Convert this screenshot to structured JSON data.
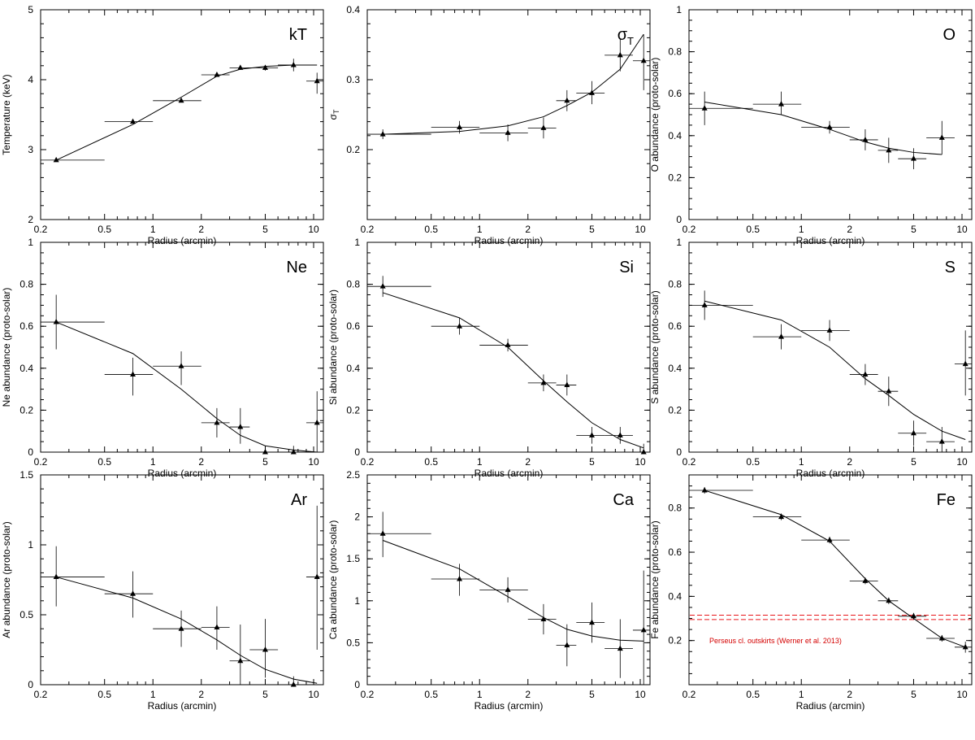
{
  "figure": {
    "xlabel": "Radius (arcmin)",
    "x_ticks": [
      0.2,
      0.5,
      1,
      2,
      5,
      10
    ],
    "x_tick_labels": [
      "0.2",
      "0.5",
      "1",
      "2",
      "5",
      "10"
    ],
    "xlim": [
      0.2,
      11.5
    ]
  },
  "chart_data": [
    {
      "type": "scatter",
      "id": "kT",
      "title": "kT",
      "ylabel": "Temperature (keV)",
      "ylim": [
        2,
        5
      ],
      "y_ticks": [
        2,
        3,
        4,
        5
      ],
      "y_tick_labels": [
        "2",
        "3",
        "4",
        "5"
      ],
      "points": [
        {
          "x": 0.25,
          "xlo": 0.2,
          "xhi": 0.5,
          "y": 2.85,
          "ylo": 2.83,
          "yhi": 2.87
        },
        {
          "x": 0.75,
          "xlo": 0.5,
          "xhi": 1.0,
          "y": 3.4,
          "ylo": 3.38,
          "yhi": 3.42
        },
        {
          "x": 1.5,
          "xlo": 1.0,
          "xhi": 2.0,
          "y": 3.7,
          "ylo": 3.68,
          "yhi": 3.72
        },
        {
          "x": 2.5,
          "xlo": 2.0,
          "xhi": 3.0,
          "y": 4.07,
          "ylo": 4.05,
          "yhi": 4.09
        },
        {
          "x": 3.5,
          "xlo": 3.0,
          "xhi": 4.0,
          "y": 4.17,
          "ylo": 4.14,
          "yhi": 4.2
        },
        {
          "x": 5.0,
          "xlo": 4.0,
          "xhi": 6.0,
          "y": 4.17,
          "ylo": 4.13,
          "yhi": 4.21
        },
        {
          "x": 7.5,
          "xlo": 6.0,
          "xhi": 9.0,
          "y": 4.21,
          "ylo": 4.12,
          "yhi": 4.3
        },
        {
          "x": 10.5,
          "xlo": 9.0,
          "xhi": 11.5,
          "y": 3.98,
          "ylo": 3.8,
          "yhi": 4.1
        }
      ],
      "model": {
        "x": [
          0.25,
          0.75,
          1.5,
          2.5,
          3.5,
          5.0,
          7.5,
          10.5
        ],
        "y": [
          2.85,
          3.36,
          3.75,
          4.05,
          4.15,
          4.19,
          4.21,
          4.21
        ]
      }
    },
    {
      "type": "scatter",
      "id": "sigma",
      "title": "σ",
      "title_sub": "T",
      "ylabel": "σ",
      "ylabel_sub": "T",
      "ylim": [
        0.1,
        0.4
      ],
      "y_ticks": [
        0.2,
        0.3,
        0.4
      ],
      "y_tick_labels": [
        "0.2",
        "0.3",
        "0.4"
      ],
      "points": [
        {
          "x": 0.25,
          "xlo": 0.2,
          "xhi": 0.5,
          "y": 0.222,
          "ylo": 0.215,
          "yhi": 0.229
        },
        {
          "x": 0.75,
          "xlo": 0.5,
          "xhi": 1.0,
          "y": 0.232,
          "ylo": 0.223,
          "yhi": 0.241
        },
        {
          "x": 1.5,
          "xlo": 1.0,
          "xhi": 2.0,
          "y": 0.224,
          "ylo": 0.212,
          "yhi": 0.236
        },
        {
          "x": 2.5,
          "xlo": 2.0,
          "xhi": 3.0,
          "y": 0.231,
          "ylo": 0.216,
          "yhi": 0.246
        },
        {
          "x": 3.5,
          "xlo": 3.0,
          "xhi": 4.0,
          "y": 0.27,
          "ylo": 0.255,
          "yhi": 0.285
        },
        {
          "x": 5.0,
          "xlo": 4.0,
          "xhi": 6.0,
          "y": 0.281,
          "ylo": 0.265,
          "yhi": 0.298
        },
        {
          "x": 7.5,
          "xlo": 6.0,
          "xhi": 9.0,
          "y": 0.335,
          "ylo": 0.312,
          "yhi": 0.358
        },
        {
          "x": 10.5,
          "xlo": 9.0,
          "xhi": 11.5,
          "y": 0.327,
          "ylo": 0.285,
          "yhi": 0.365
        }
      ],
      "model": {
        "x": [
          0.25,
          0.75,
          1.5,
          2.5,
          3.5,
          5.0,
          7.5,
          10.5
        ],
        "y": [
          0.222,
          0.226,
          0.234,
          0.247,
          0.263,
          0.282,
          0.315,
          0.365
        ]
      }
    },
    {
      "type": "scatter",
      "id": "O",
      "title": "O",
      "ylabel": "O abundance (proto-solar)",
      "ylim": [
        0,
        1
      ],
      "y_ticks": [
        0,
        0.2,
        0.4,
        0.6,
        0.8,
        1
      ],
      "y_tick_labels": [
        "0",
        "0.2",
        "0.4",
        "0.6",
        "0.8",
        "1"
      ],
      "points": [
        {
          "x": 0.25,
          "xlo": 0.2,
          "xhi": 0.5,
          "y": 0.53,
          "ylo": 0.45,
          "yhi": 0.61
        },
        {
          "x": 0.75,
          "xlo": 0.5,
          "xhi": 1.0,
          "y": 0.55,
          "ylo": 0.5,
          "yhi": 0.61
        },
        {
          "x": 1.5,
          "xlo": 1.0,
          "xhi": 2.0,
          "y": 0.44,
          "ylo": 0.41,
          "yhi": 0.47
        },
        {
          "x": 2.5,
          "xlo": 2.0,
          "xhi": 3.0,
          "y": 0.38,
          "ylo": 0.33,
          "yhi": 0.43
        },
        {
          "x": 3.5,
          "xlo": 3.0,
          "xhi": 4.0,
          "y": 0.33,
          "ylo": 0.27,
          "yhi": 0.39
        },
        {
          "x": 5.0,
          "xlo": 4.0,
          "xhi": 6.0,
          "y": 0.29,
          "ylo": 0.24,
          "yhi": 0.34
        },
        {
          "x": 7.5,
          "xlo": 6.0,
          "xhi": 9.0,
          "y": 0.39,
          "ylo": 0.31,
          "yhi": 0.47
        }
      ],
      "model": {
        "x": [
          0.25,
          0.75,
          1.5,
          2.5,
          3.5,
          5.0,
          7.5
        ],
        "y": [
          0.56,
          0.5,
          0.43,
          0.37,
          0.34,
          0.32,
          0.31
        ]
      }
    },
    {
      "type": "scatter",
      "id": "Ne",
      "title": "Ne",
      "ylabel": "Ne abundance (proto-solar)",
      "ylim": [
        0,
        1
      ],
      "y_ticks": [
        0,
        0.2,
        0.4,
        0.6,
        0.8,
        1
      ],
      "y_tick_labels": [
        "0",
        "0.2",
        "0.4",
        "0.6",
        "0.8",
        "1"
      ],
      "points": [
        {
          "x": 0.25,
          "xlo": 0.2,
          "xhi": 0.5,
          "y": 0.62,
          "ylo": 0.49,
          "yhi": 0.75
        },
        {
          "x": 0.75,
          "xlo": 0.5,
          "xhi": 1.0,
          "y": 0.37,
          "ylo": 0.27,
          "yhi": 0.45
        },
        {
          "x": 1.5,
          "xlo": 1.0,
          "xhi": 2.0,
          "y": 0.41,
          "ylo": 0.32,
          "yhi": 0.48
        },
        {
          "x": 2.5,
          "xlo": 2.0,
          "xhi": 3.0,
          "y": 0.14,
          "ylo": 0.07,
          "yhi": 0.21
        },
        {
          "x": 3.5,
          "xlo": 3.0,
          "xhi": 4.0,
          "y": 0.12,
          "ylo": 0.04,
          "yhi": 0.21
        },
        {
          "x": 5.0,
          "xlo": 4.0,
          "xhi": 6.0,
          "y": 0.0,
          "ylo": 0.0,
          "yhi": 0.03
        },
        {
          "x": 7.5,
          "xlo": 6.0,
          "xhi": 9.0,
          "y": 0.0,
          "ylo": 0.0,
          "yhi": 0.03
        },
        {
          "x": 10.5,
          "xlo": 9.0,
          "xhi": 11.5,
          "y": 0.14,
          "ylo": 0.0,
          "yhi": 0.29
        }
      ],
      "model": {
        "x": [
          0.25,
          0.75,
          1.5,
          2.5,
          3.5,
          5.0,
          7.5,
          10.5
        ],
        "y": [
          0.62,
          0.47,
          0.3,
          0.16,
          0.08,
          0.03,
          0.01,
          0.0
        ]
      }
    },
    {
      "type": "scatter",
      "id": "Si",
      "title": "Si",
      "ylabel": "Si abundance (proto-solar)",
      "ylim": [
        0,
        1
      ],
      "y_ticks": [
        0,
        0.2,
        0.4,
        0.6,
        0.8,
        1
      ],
      "y_tick_labels": [
        "0",
        "0.2",
        "0.4",
        "0.6",
        "0.8",
        "1"
      ],
      "points": [
        {
          "x": 0.25,
          "xlo": 0.2,
          "xhi": 0.5,
          "y": 0.79,
          "ylo": 0.74,
          "yhi": 0.84
        },
        {
          "x": 0.75,
          "xlo": 0.5,
          "xhi": 1.0,
          "y": 0.6,
          "ylo": 0.56,
          "yhi": 0.64
        },
        {
          "x": 1.5,
          "xlo": 1.0,
          "xhi": 2.0,
          "y": 0.51,
          "ylo": 0.48,
          "yhi": 0.54
        },
        {
          "x": 2.5,
          "xlo": 2.0,
          "xhi": 3.0,
          "y": 0.33,
          "ylo": 0.29,
          "yhi": 0.37
        },
        {
          "x": 3.5,
          "xlo": 3.0,
          "xhi": 4.0,
          "y": 0.32,
          "ylo": 0.27,
          "yhi": 0.37
        },
        {
          "x": 5.0,
          "xlo": 4.0,
          "xhi": 6.0,
          "y": 0.08,
          "ylo": 0.04,
          "yhi": 0.12
        },
        {
          "x": 7.5,
          "xlo": 6.0,
          "xhi": 9.0,
          "y": 0.08,
          "ylo": 0.04,
          "yhi": 0.12
        },
        {
          "x": 10.5,
          "xlo": 9.0,
          "xhi": 11.5,
          "y": 0.0,
          "ylo": 0.0,
          "yhi": 0.04
        }
      ],
      "model": {
        "x": [
          0.25,
          0.75,
          1.5,
          2.5,
          3.5,
          5.0,
          7.5,
          10.5
        ],
        "y": [
          0.76,
          0.64,
          0.5,
          0.34,
          0.24,
          0.14,
          0.06,
          0.02
        ]
      }
    },
    {
      "type": "scatter",
      "id": "S",
      "title": "S",
      "ylabel": "S abundance (proto-solar)",
      "ylim": [
        0,
        1
      ],
      "y_ticks": [
        0,
        0.2,
        0.4,
        0.6,
        0.8,
        1
      ],
      "y_tick_labels": [
        "0",
        "0.2",
        "0.4",
        "0.6",
        "0.8",
        "1"
      ],
      "points": [
        {
          "x": 0.25,
          "xlo": 0.2,
          "xhi": 0.5,
          "y": 0.7,
          "ylo": 0.63,
          "yhi": 0.77
        },
        {
          "x": 0.75,
          "xlo": 0.5,
          "xhi": 1.0,
          "y": 0.55,
          "ylo": 0.49,
          "yhi": 0.61
        },
        {
          "x": 1.5,
          "xlo": 1.0,
          "xhi": 2.0,
          "y": 0.58,
          "ylo": 0.53,
          "yhi": 0.63
        },
        {
          "x": 2.5,
          "xlo": 2.0,
          "xhi": 3.0,
          "y": 0.37,
          "ylo": 0.32,
          "yhi": 0.42
        },
        {
          "x": 3.5,
          "xlo": 3.0,
          "xhi": 4.0,
          "y": 0.29,
          "ylo": 0.22,
          "yhi": 0.36
        },
        {
          "x": 5.0,
          "xlo": 4.0,
          "xhi": 6.0,
          "y": 0.09,
          "ylo": 0.03,
          "yhi": 0.15
        },
        {
          "x": 7.5,
          "xlo": 6.0,
          "xhi": 9.0,
          "y": 0.05,
          "ylo": 0.0,
          "yhi": 0.12
        },
        {
          "x": 10.5,
          "xlo": 9.0,
          "xhi": 11.5,
          "y": 0.42,
          "ylo": 0.27,
          "yhi": 0.58
        }
      ],
      "model": {
        "x": [
          0.25,
          0.75,
          1.5,
          2.5,
          3.5,
          5.0,
          7.5,
          10.5
        ],
        "y": [
          0.72,
          0.63,
          0.5,
          0.35,
          0.27,
          0.18,
          0.1,
          0.06
        ]
      }
    },
    {
      "type": "scatter",
      "id": "Ar",
      "title": "Ar",
      "ylabel": "Ar abundance (proto-solar)",
      "ylim": [
        0,
        1.5
      ],
      "y_ticks": [
        0,
        0.5,
        1,
        1.5
      ],
      "y_tick_labels": [
        "0",
        "0.5",
        "1",
        "1.5"
      ],
      "points": [
        {
          "x": 0.25,
          "xlo": 0.2,
          "xhi": 0.5,
          "y": 0.77,
          "ylo": 0.56,
          "yhi": 0.99
        },
        {
          "x": 0.75,
          "xlo": 0.5,
          "xhi": 1.0,
          "y": 0.65,
          "ylo": 0.48,
          "yhi": 0.81
        },
        {
          "x": 1.5,
          "xlo": 1.0,
          "xhi": 2.0,
          "y": 0.4,
          "ylo": 0.27,
          "yhi": 0.53
        },
        {
          "x": 2.5,
          "xlo": 2.0,
          "xhi": 3.0,
          "y": 0.41,
          "ylo": 0.25,
          "yhi": 0.56
        },
        {
          "x": 3.5,
          "xlo": 3.0,
          "xhi": 4.0,
          "y": 0.17,
          "ylo": 0.0,
          "yhi": 0.43
        },
        {
          "x": 5.0,
          "xlo": 4.0,
          "xhi": 6.0,
          "y": 0.25,
          "ylo": 0.05,
          "yhi": 0.47
        },
        {
          "x": 7.5,
          "xlo": 6.0,
          "xhi": 9.0,
          "y": 0.0,
          "ylo": 0.0,
          "yhi": 0.06
        },
        {
          "x": 10.5,
          "xlo": 9.0,
          "xhi": 11.5,
          "y": 0.77,
          "ylo": 0.25,
          "yhi": 1.28
        }
      ],
      "model": {
        "x": [
          0.25,
          0.75,
          1.5,
          2.5,
          3.5,
          5.0,
          7.5,
          10.5
        ],
        "y": [
          0.77,
          0.62,
          0.47,
          0.32,
          0.21,
          0.11,
          0.04,
          0.01
        ]
      }
    },
    {
      "type": "scatter",
      "id": "Ca",
      "title": "Ca",
      "ylabel": "Ca abundance (proto-solar)",
      "ylim": [
        0,
        2.5
      ],
      "y_ticks": [
        0,
        0.5,
        1,
        1.5,
        2,
        2.5
      ],
      "y_tick_labels": [
        "0",
        "0.5",
        "1",
        "1.5",
        "2",
        "2.5"
      ],
      "points": [
        {
          "x": 0.25,
          "xlo": 0.2,
          "xhi": 0.5,
          "y": 1.8,
          "ylo": 1.52,
          "yhi": 2.06
        },
        {
          "x": 0.75,
          "xlo": 0.5,
          "xhi": 1.0,
          "y": 1.26,
          "ylo": 1.06,
          "yhi": 1.44
        },
        {
          "x": 1.5,
          "xlo": 1.0,
          "xhi": 2.0,
          "y": 1.13,
          "ylo": 0.98,
          "yhi": 1.28
        },
        {
          "x": 2.5,
          "xlo": 2.0,
          "xhi": 3.0,
          "y": 0.78,
          "ylo": 0.6,
          "yhi": 0.96
        },
        {
          "x": 3.5,
          "xlo": 3.0,
          "xhi": 4.0,
          "y": 0.47,
          "ylo": 0.22,
          "yhi": 0.72
        },
        {
          "x": 5.0,
          "xlo": 4.0,
          "xhi": 6.0,
          "y": 0.74,
          "ylo": 0.5,
          "yhi": 0.98
        },
        {
          "x": 7.5,
          "xlo": 6.0,
          "xhi": 9.0,
          "y": 0.43,
          "ylo": 0.08,
          "yhi": 0.78
        },
        {
          "x": 10.5,
          "xlo": 9.0,
          "xhi": 11.5,
          "y": 0.65,
          "ylo": 0.0,
          "yhi": 1.36
        }
      ],
      "model": {
        "x": [
          0.25,
          0.75,
          1.5,
          2.5,
          3.5,
          5.0,
          7.5,
          10.5
        ],
        "y": [
          1.72,
          1.38,
          1.05,
          0.8,
          0.66,
          0.58,
          0.53,
          0.52
        ]
      }
    },
    {
      "type": "scatter",
      "id": "Fe",
      "title": "Fe",
      "ylabel": "Fe abundance (proto-solar)",
      "ylim": [
        0,
        0.95
      ],
      "y_ticks": [
        0.2,
        0.4,
        0.6,
        0.8
      ],
      "y_tick_labels": [
        "0.2",
        "0.4",
        "0.6",
        "0.8"
      ],
      "points": [
        {
          "x": 0.25,
          "xlo": 0.2,
          "xhi": 0.5,
          "y": 0.88,
          "ylo": 0.865,
          "yhi": 0.895
        },
        {
          "x": 0.75,
          "xlo": 0.5,
          "xhi": 1.0,
          "y": 0.76,
          "ylo": 0.745,
          "yhi": 0.775
        },
        {
          "x": 1.5,
          "xlo": 1.0,
          "xhi": 2.0,
          "y": 0.655,
          "ylo": 0.64,
          "yhi": 0.67
        },
        {
          "x": 2.5,
          "xlo": 2.0,
          "xhi": 3.0,
          "y": 0.47,
          "ylo": 0.455,
          "yhi": 0.485
        },
        {
          "x": 3.5,
          "xlo": 3.0,
          "xhi": 4.0,
          "y": 0.38,
          "ylo": 0.365,
          "yhi": 0.395
        },
        {
          "x": 5.0,
          "xlo": 4.0,
          "xhi": 6.0,
          "y": 0.31,
          "ylo": 0.295,
          "yhi": 0.325
        },
        {
          "x": 7.5,
          "xlo": 6.0,
          "xhi": 9.0,
          "y": 0.21,
          "ylo": 0.195,
          "yhi": 0.225
        },
        {
          "x": 10.5,
          "xlo": 9.0,
          "xhi": 11.5,
          "y": 0.17,
          "ylo": 0.145,
          "yhi": 0.195
        }
      ],
      "model": {
        "x": [
          0.25,
          0.75,
          1.5,
          2.5,
          3.5,
          5.0,
          7.5,
          10.5
        ],
        "y": [
          0.88,
          0.77,
          0.65,
          0.48,
          0.38,
          0.3,
          0.21,
          0.17
        ]
      },
      "hlines": [
        0.295,
        0.315
      ],
      "hline_color": "#e8161b",
      "annotation": "Perseus cl. outskirts (Werner et al. 2013)",
      "annotation_color": "#d40000"
    }
  ]
}
